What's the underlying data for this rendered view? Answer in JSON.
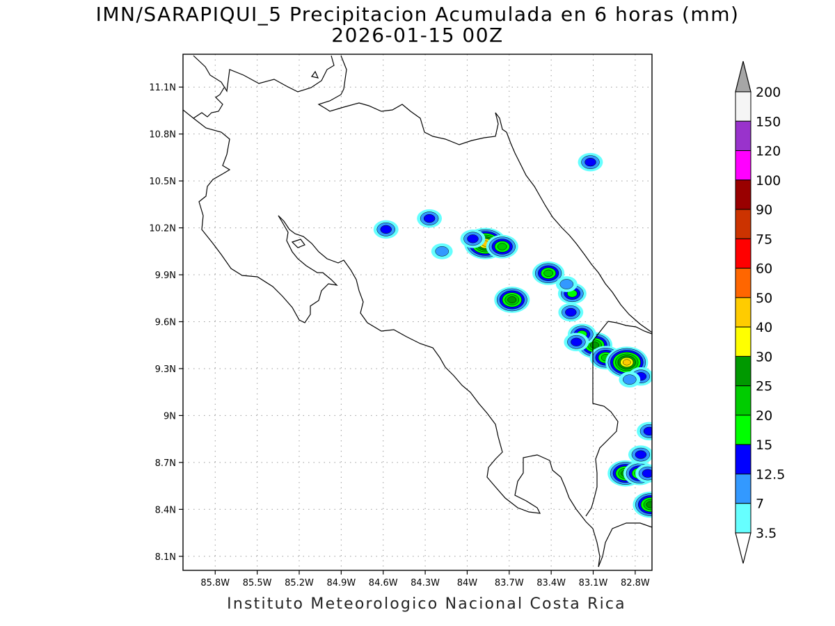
{
  "title_line1": "IMN/SARAPIQUI_5 Precipitacion Acumulada en 6 horas (mm)",
  "title_line2": "2026-01-15 00Z",
  "footer": "Instituto Meteorologico Nacional Costa Rica",
  "map": {
    "lon_range": [
      -86.03,
      -82.68
    ],
    "lat_range": [
      8.01,
      11.31
    ],
    "lon_ticks": [
      {
        "value": -85.8,
        "label": "85.8W"
      },
      {
        "value": -85.5,
        "label": "85.5W"
      },
      {
        "value": -85.2,
        "label": "85.2W"
      },
      {
        "value": -84.9,
        "label": "84.9W"
      },
      {
        "value": -84.6,
        "label": "84.6W"
      },
      {
        "value": -84.3,
        "label": "84.3W"
      },
      {
        "value": -84.0,
        "label": "84W"
      },
      {
        "value": -83.7,
        "label": "83.7W"
      },
      {
        "value": -83.4,
        "label": "83.4W"
      },
      {
        "value": -83.1,
        "label": "83.1W"
      },
      {
        "value": -82.8,
        "label": "82.8W"
      }
    ],
    "lat_ticks": [
      {
        "value": 11.1,
        "label": "11.1N"
      },
      {
        "value": 10.8,
        "label": "10.8N"
      },
      {
        "value": 10.5,
        "label": "10.5N"
      },
      {
        "value": 10.2,
        "label": "10.2N"
      },
      {
        "value": 9.9,
        "label": "9.9N"
      },
      {
        "value": 9.6,
        "label": "9.6N"
      },
      {
        "value": 9.3,
        "label": "9.3N"
      },
      {
        "value": 9.0,
        "label": "9N"
      },
      {
        "value": 8.7,
        "label": "8.7N"
      },
      {
        "value": 8.4,
        "label": "8.4N"
      },
      {
        "value": 8.1,
        "label": "8.1N"
      }
    ],
    "grid": true
  },
  "colorbar": {
    "levels": [
      "3.5",
      "7",
      "12.5",
      "15",
      "20",
      "25",
      "30",
      "40",
      "50",
      "60",
      "75",
      "90",
      "100",
      "120",
      "150",
      "200"
    ],
    "colors": [
      "#66ffff",
      "#3399ff",
      "#0000ff",
      "#00ff00",
      "#00cc00",
      "#009900",
      "#ffff00",
      "#ffcc00",
      "#ff6600",
      "#ff0000",
      "#cc3300",
      "#990000",
      "#ff00ff",
      "#9933cc",
      "#f5f5f5"
    ],
    "over_color": "#a6a6a6",
    "under_color": "#ffffff"
  },
  "precip_cells": [
    {
      "lon": -84.27,
      "lat": 10.26,
      "value": 12.5
    },
    {
      "lon": -84.58,
      "lat": 10.19,
      "value": 12.5
    },
    {
      "lon": -83.87,
      "lat": 10.1,
      "value": 40
    },
    {
      "lon": -83.75,
      "lat": 10.08,
      "value": 20
    },
    {
      "lon": -83.96,
      "lat": 10.13,
      "value": 12.5
    },
    {
      "lon": -84.18,
      "lat": 10.05,
      "value": 7
    },
    {
      "lon": -83.68,
      "lat": 9.74,
      "value": 25
    },
    {
      "lon": -83.42,
      "lat": 9.91,
      "value": 20
    },
    {
      "lon": -83.25,
      "lat": 9.78,
      "value": 15
    },
    {
      "lon": -83.29,
      "lat": 9.84,
      "value": 7
    },
    {
      "lon": -83.12,
      "lat": 10.62,
      "value": 12.5
    },
    {
      "lon": -83.09,
      "lat": 9.45,
      "value": 25
    },
    {
      "lon": -83.18,
      "lat": 9.52,
      "value": 15
    },
    {
      "lon": -83.22,
      "lat": 9.47,
      "value": 12.5
    },
    {
      "lon": -83.01,
      "lat": 9.37,
      "value": 20
    },
    {
      "lon": -82.86,
      "lat": 9.34,
      "value": 40
    },
    {
      "lon": -82.76,
      "lat": 9.25,
      "value": 12.5
    },
    {
      "lon": -82.7,
      "lat": 8.9,
      "value": 12.5
    },
    {
      "lon": -82.87,
      "lat": 8.63,
      "value": 25
    },
    {
      "lon": -82.77,
      "lat": 8.63,
      "value": 20
    },
    {
      "lon": -82.71,
      "lat": 8.63,
      "value": 12.5
    },
    {
      "lon": -82.76,
      "lat": 8.75,
      "value": 12.5
    },
    {
      "lon": -82.69,
      "lat": 8.43,
      "value": 25
    },
    {
      "lon": -83.26,
      "lat": 9.66,
      "value": 12.5
    },
    {
      "lon": -82.84,
      "lat": 9.23,
      "value": 7
    }
  ]
}
